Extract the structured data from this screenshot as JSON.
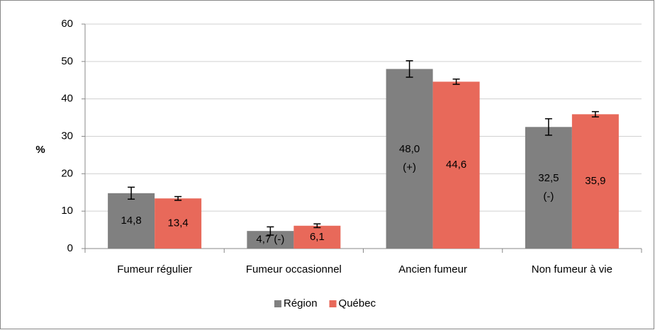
{
  "chart_data": {
    "type": "bar",
    "categories": [
      "Fumeur régulier",
      "Fumeur occasionnel",
      "Ancien fumeur",
      "Non fumeur à vie"
    ],
    "series": [
      {
        "name": "Région",
        "color": "#808080",
        "values": [
          14.8,
          4.7,
          48.0,
          32.5
        ],
        "errors": [
          1.6,
          1.1,
          2.2,
          2.2
        ],
        "value_labels": [
          "14,8",
          "4,7 (-)",
          "48,0\n(+)",
          "32,5\n(-)"
        ]
      },
      {
        "name": "Québec",
        "color": "#e8695a",
        "values": [
          13.4,
          6.1,
          44.6,
          35.9
        ],
        "errors": [
          0.5,
          0.5,
          0.7,
          0.7
        ],
        "value_labels": [
          "13,4",
          "6,1",
          "44,6",
          "35,9"
        ]
      }
    ],
    "ylabel": "%",
    "ylim": [
      0,
      60
    ],
    "yticks": [
      0,
      10,
      20,
      30,
      40,
      50,
      60
    ],
    "grid": true,
    "legend": "bottom"
  }
}
